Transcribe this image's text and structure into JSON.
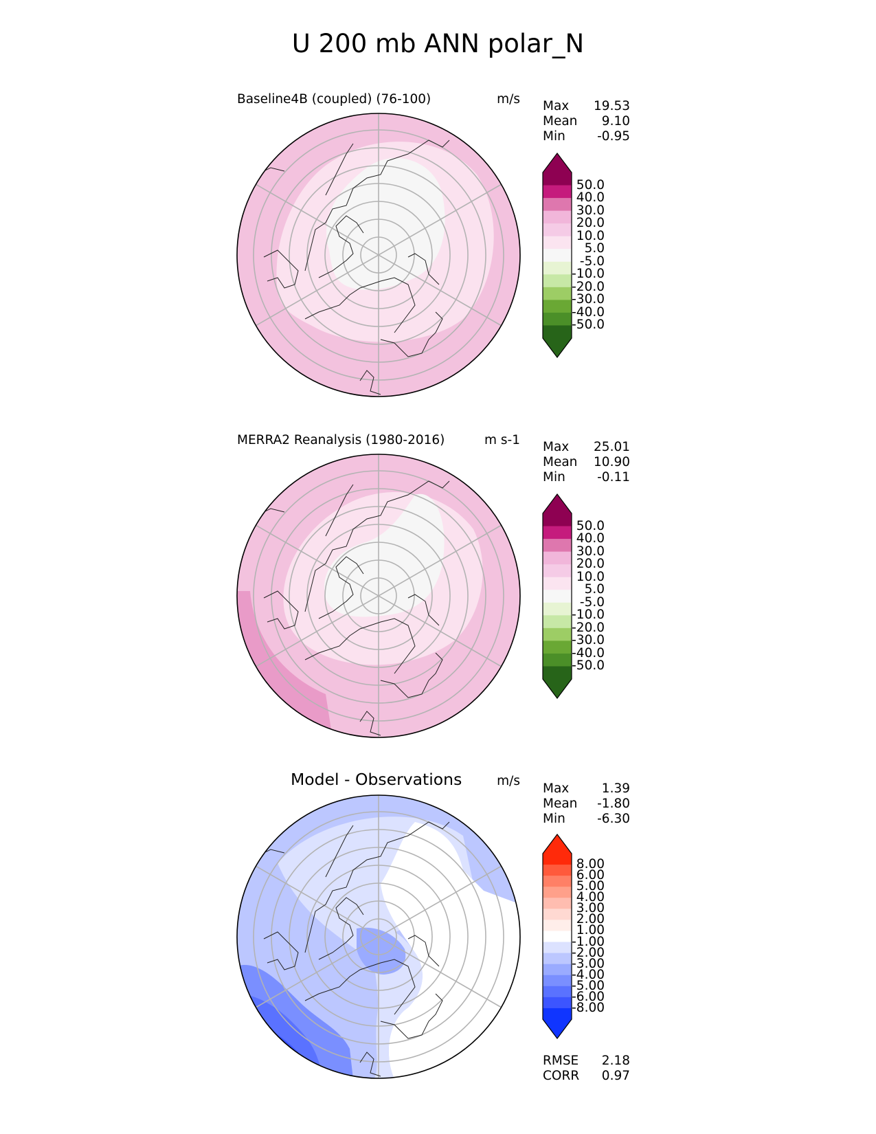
{
  "title": "U 200 mb ANN polar_N",
  "panels": [
    {
      "title": "Baseline4B (coupled) (76-100)",
      "units": "m/s",
      "stats": [
        {
          "label": "Max",
          "value": "19.53"
        },
        {
          "label": "Mean",
          "value": "9.10"
        },
        {
          "label": "Min",
          "value": "-0.95"
        }
      ],
      "colorbar": {
        "labels": [
          "50.0",
          "40.0",
          "30.0",
          "20.0",
          "10.0",
          "5.0",
          "-5.0",
          "-10.0",
          "-20.0",
          "-30.0",
          "-40.0",
          "-50.0"
        ],
        "colors": [
          "#8e0152",
          "#c51b7d",
          "#de77ae",
          "#f1b6da",
          "#f5cbe6",
          "#fbe4f0",
          "#f7f7f7",
          "#e7f4d3",
          "#c7e8a6",
          "#9dcd65",
          "#6aa834",
          "#4b8f28",
          "#276419"
        ],
        "extend_colors": {
          "top": "#8e0152",
          "bottom": "#276419"
        }
      }
    },
    {
      "title": "MERRA2 Reanalysis (1980-2016)",
      "units": "m s-1",
      "stats": [
        {
          "label": "Max",
          "value": "25.01"
        },
        {
          "label": "Mean",
          "value": "10.90"
        },
        {
          "label": "Min",
          "value": "-0.11"
        }
      ],
      "colorbar": {
        "labels": [
          "50.0",
          "40.0",
          "30.0",
          "20.0",
          "10.0",
          "5.0",
          "-5.0",
          "-10.0",
          "-20.0",
          "-30.0",
          "-40.0",
          "-50.0"
        ],
        "colors": [
          "#8e0152",
          "#c51b7d",
          "#de77ae",
          "#f1b6da",
          "#f5cbe6",
          "#fbe4f0",
          "#f7f7f7",
          "#e7f4d3",
          "#c7e8a6",
          "#9dcd65",
          "#6aa834",
          "#4b8f28",
          "#276419"
        ],
        "extend_colors": {
          "top": "#8e0152",
          "bottom": "#276419"
        }
      }
    },
    {
      "title": "Model - Observations",
      "units": "m/s",
      "stats": [
        {
          "label": "Max",
          "value": "1.39"
        },
        {
          "label": "Mean",
          "value": "-1.80"
        },
        {
          "label": "Min",
          "value": "-6.30"
        }
      ],
      "colorbar": {
        "labels": [
          "8.00",
          "6.00",
          "5.00",
          "4.00",
          "3.00",
          "2.00",
          "1.00",
          "-1.00",
          "-2.00",
          "-3.00",
          "-4.00",
          "-5.00",
          "-6.00",
          "-8.00"
        ],
        "colors": [
          "#ff2a0a",
          "#ff5a3c",
          "#ff8066",
          "#ffa08a",
          "#ffbdb0",
          "#ffd9d2",
          "#ffeeea",
          "#ffffff",
          "#dce2ff",
          "#bcc7ff",
          "#9aabff",
          "#7a8fff",
          "#5a72ff",
          "#3c55ff",
          "#1035ff"
        ],
        "extend_colors": {
          "top": "#ff2a0a",
          "bottom": "#1035ff"
        }
      },
      "metrics": [
        {
          "label": "RMSE",
          "value": "2.18"
        },
        {
          "label": "CORR",
          "value": "0.97"
        }
      ]
    }
  ]
}
